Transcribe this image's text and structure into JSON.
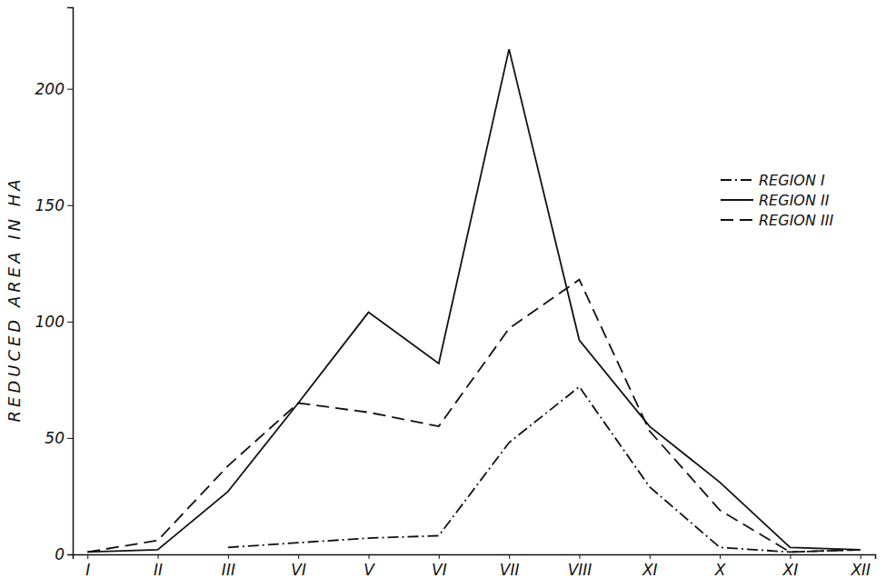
{
  "chart_data": {
    "type": "line",
    "y_label": "REDUCED AREA IN HA",
    "categories": [
      "I",
      "II",
      "III",
      "VI",
      "V",
      "VI",
      "VII",
      "VIII",
      "XI",
      "X",
      "XI",
      "XII"
    ],
    "series": [
      {
        "name": "REGION I",
        "color": "#111111",
        "line_style": "dashdot",
        "values": [
          null,
          null,
          3,
          5,
          7,
          8,
          48,
          72,
          29,
          3,
          1,
          2
        ]
      },
      {
        "name": "REGION II",
        "color": "#111111",
        "line_style": "solid",
        "values": [
          1,
          2,
          27,
          65,
          104,
          82,
          217,
          92,
          55,
          31,
          3,
          2
        ]
      },
      {
        "name": "REGION III",
        "color": "#111111",
        "line_style": "dashed",
        "values": [
          1,
          6,
          38,
          65,
          61,
          55,
          97,
          118,
          53,
          19,
          1,
          2
        ]
      }
    ],
    "ylim": [
      0,
      235
    ],
    "yticks": [
      0,
      50,
      100,
      150,
      200
    ],
    "legend": "upper right",
    "grid": false
  }
}
